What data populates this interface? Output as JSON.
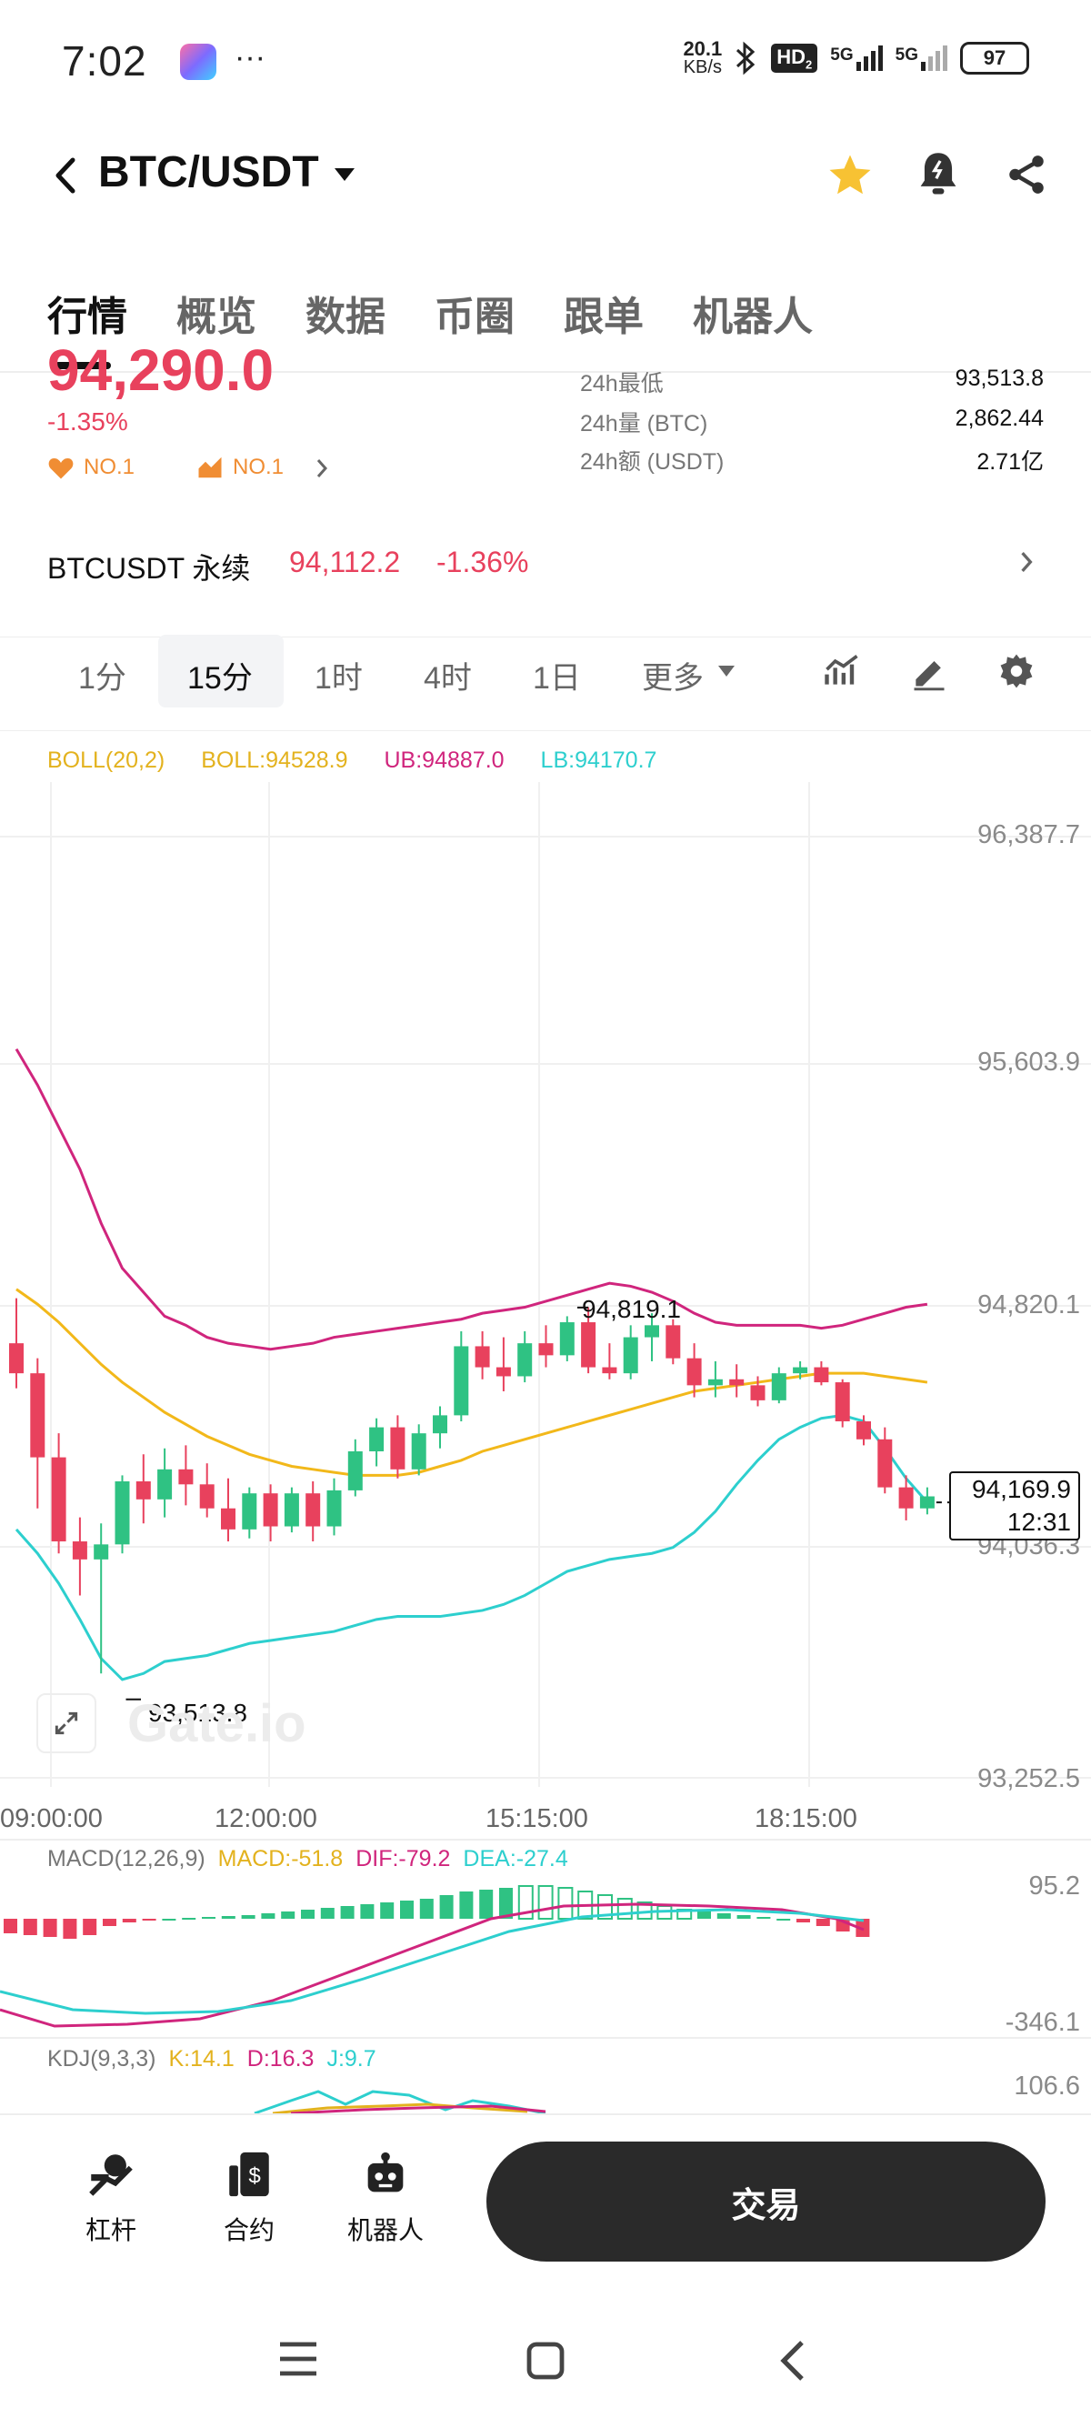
{
  "status": {
    "time": "7:02",
    "net_speed_top": "20.1",
    "net_speed_bottom": "KB/s",
    "hd": "HD",
    "hd_sub": "2",
    "sig1": "5G",
    "sig2": "5G",
    "battery": "97",
    "app_icon": "game-app-icon",
    "dots": "···"
  },
  "header": {
    "title": "BTC/USDT",
    "icons": [
      "back-icon",
      "dropdown-icon",
      "star-icon",
      "bell-icon",
      "share-icon"
    ],
    "star_color": "#f7c233"
  },
  "tabs": [
    "行情",
    "概览",
    "数据",
    "币圈",
    "跟单",
    "机器人"
  ],
  "summary": {
    "price_partial": "94,290.0",
    "change_pct": "-1.35%",
    "badge1": "NO.1",
    "badge2": "NO.1",
    "stats": [
      {
        "label": "24h最低",
        "value": "93,513.8"
      },
      {
        "label": "24h量 (BTC)",
        "value": "2,862.44"
      },
      {
        "label": "24h额 (USDT)",
        "value": "2.71亿"
      }
    ]
  },
  "perpetual": {
    "label": "BTCUSDT 永续",
    "price": "94,112.2",
    "change": "-1.36%"
  },
  "intervals": {
    "items": [
      "1分",
      "15分",
      "1时",
      "4时",
      "1日",
      "更多"
    ],
    "active": "15分"
  },
  "boll": {
    "label": "BOLL(20,2)",
    "mid": "BOLL:94528.9",
    "ub": "UB:94887.0",
    "lb": "LB:94170.7"
  },
  "chart_data": {
    "type": "candlestick",
    "y_ticks": [
      "96,387.7",
      "95,603.9",
      "94,820.1",
      "94,036.3",
      "93,252.5"
    ],
    "x_ticks": [
      "09:00:00",
      "12:00:00",
      "15:15:00",
      "18:15:00"
    ],
    "ylim": [
      93252.5,
      96387.7
    ],
    "high_marker": "94,819.1",
    "low_marker": "93,513.8",
    "current_price": "94,169.9",
    "countdown": "12:31",
    "candles": [
      [
        94700,
        94850,
        94550,
        94600
      ],
      [
        94600,
        94650,
        94150,
        94320
      ],
      [
        94320,
        94400,
        94000,
        94040
      ],
      [
        94040,
        94120,
        93860,
        93980
      ],
      [
        93980,
        94100,
        93600,
        94030
      ],
      [
        94030,
        94260,
        94000,
        94240
      ],
      [
        94240,
        94330,
        94100,
        94180
      ],
      [
        94180,
        94350,
        94120,
        94280
      ],
      [
        94280,
        94360,
        94160,
        94230
      ],
      [
        94230,
        94300,
        94120,
        94150
      ],
      [
        94150,
        94250,
        94040,
        94080
      ],
      [
        94080,
        94220,
        94050,
        94200
      ],
      [
        94200,
        94230,
        94040,
        94090
      ],
      [
        94090,
        94220,
        94070,
        94200
      ],
      [
        94200,
        94240,
        94040,
        94090
      ],
      [
        94090,
        94250,
        94060,
        94210
      ],
      [
        94210,
        94380,
        94190,
        94340
      ],
      [
        94340,
        94450,
        94290,
        94420
      ],
      [
        94420,
        94460,
        94250,
        94280
      ],
      [
        94280,
        94430,
        94260,
        94400
      ],
      [
        94400,
        94490,
        94350,
        94460
      ],
      [
        94460,
        94740,
        94440,
        94690
      ],
      [
        94690,
        94740,
        94580,
        94620
      ],
      [
        94620,
        94720,
        94540,
        94590
      ],
      [
        94590,
        94740,
        94570,
        94700
      ],
      [
        94700,
        94760,
        94620,
        94660
      ],
      [
        94660,
        94790,
        94640,
        94770
      ],
      [
        94770,
        94820,
        94600,
        94620
      ],
      [
        94620,
        94700,
        94580,
        94600
      ],
      [
        94600,
        94760,
        94580,
        94720
      ],
      [
        94720,
        94800,
        94640,
        94760
      ],
      [
        94760,
        94780,
        94630,
        94650
      ],
      [
        94650,
        94700,
        94520,
        94560
      ],
      [
        94560,
        94640,
        94520,
        94580
      ],
      [
        94580,
        94630,
        94520,
        94560
      ],
      [
        94560,
        94590,
        94490,
        94510
      ],
      [
        94510,
        94620,
        94500,
        94600
      ],
      [
        94600,
        94640,
        94580,
        94620
      ],
      [
        94620,
        94640,
        94560,
        94570
      ],
      [
        94570,
        94580,
        94420,
        94440
      ],
      [
        94440,
        94460,
        94360,
        94380
      ],
      [
        94380,
        94420,
        94200,
        94220
      ],
      [
        94220,
        94260,
        94110,
        94150
      ],
      [
        94150,
        94220,
        94130,
        94190
      ]
    ]
  },
  "macd": {
    "label": "MACD(12,26,9)",
    "macd": "MACD:-51.8",
    "dif": "DIF:-79.2",
    "dea": "DEA:-27.4",
    "top": "95.2",
    "bottom": "-346.1"
  },
  "kdj": {
    "label": "KDJ(9,3,3)",
    "k": "K:14.1",
    "d": "D:16.3",
    "j": "J:9.7",
    "top": "106.6"
  },
  "watermark": "Gate.io",
  "bottom_bar": {
    "items": [
      {
        "label": "杠杆",
        "icon": "leverage-icon"
      },
      {
        "label": "合约",
        "icon": "contract-icon"
      },
      {
        "label": "机器人",
        "icon": "robot-icon"
      }
    ],
    "trade_button": "交易"
  },
  "navbar": [
    "menu-icon",
    "home-icon",
    "back-icon"
  ],
  "colors": {
    "up": "#2fc283",
    "down": "#e8415d",
    "boll_mid": "#f2b81a",
    "boll_ub": "#d0257d",
    "boll_lb": "#2dcfce"
  }
}
